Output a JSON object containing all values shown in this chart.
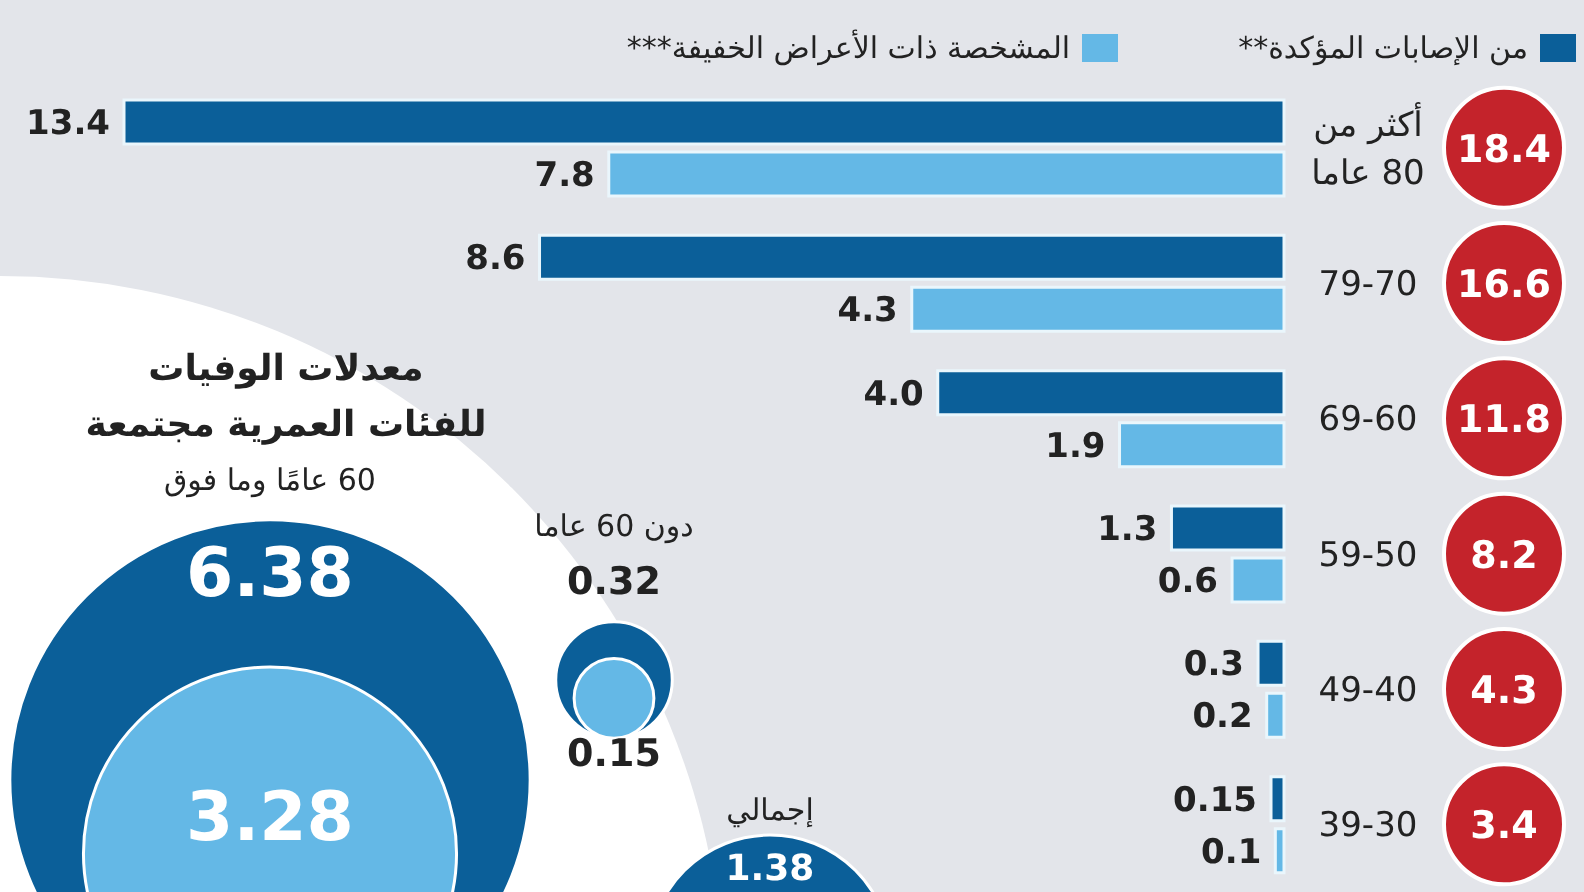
{
  "chart_data": [
    {
      "type": "bar",
      "orientation": "horizontal",
      "categories": [
        "أكثر من 80 عاما",
        "79-70",
        "69-60",
        "59-50",
        "49-40",
        "39-30"
      ],
      "series": [
        {
          "name": "من الإصابات المؤكدة**",
          "color": "#0b5f99",
          "values": [
            13.4,
            8.6,
            4.0,
            1.3,
            0.3,
            0.15
          ],
          "value_labels": [
            "13.4",
            "8.6",
            "4.0",
            "1.3",
            "0.3",
            "0.15"
          ]
        },
        {
          "name": "المشخصة ذات الأعراض الخفيفة***",
          "color": "#64b8e6",
          "values": [
            7.8,
            4.3,
            1.9,
            0.6,
            0.2,
            0.1
          ],
          "value_labels": [
            "7.8",
            "4.3",
            "1.9",
            "0.6",
            "0.2",
            "0.1"
          ]
        }
      ],
      "legend": "top"
    },
    {
      "type": "other",
      "categories": [
        null,
        null,
        null,
        null,
        null,
        null
      ],
      "values": [
        18.4,
        16.6,
        11.8,
        8.2,
        4.3,
        3.4
      ],
      "color": "#c4232b",
      "data_labels": true
    },
    {
      "type": "other",
      "title": "معدلات الوفيات للفئات العمرية مجتمعة",
      "categories": [
        "60 عامًا وما فوق",
        "دون 60 عاما",
        "إجمالي"
      ],
      "series": [
        {
          "color": "#0b5f99",
          "values": [
            6.38,
            0.32,
            1.38
          ]
        },
        {
          "color": "#64b8e6",
          "values": [
            3.28,
            0.15,
            null
          ]
        }
      ],
      "data_labels": true
    }
  ]
}
